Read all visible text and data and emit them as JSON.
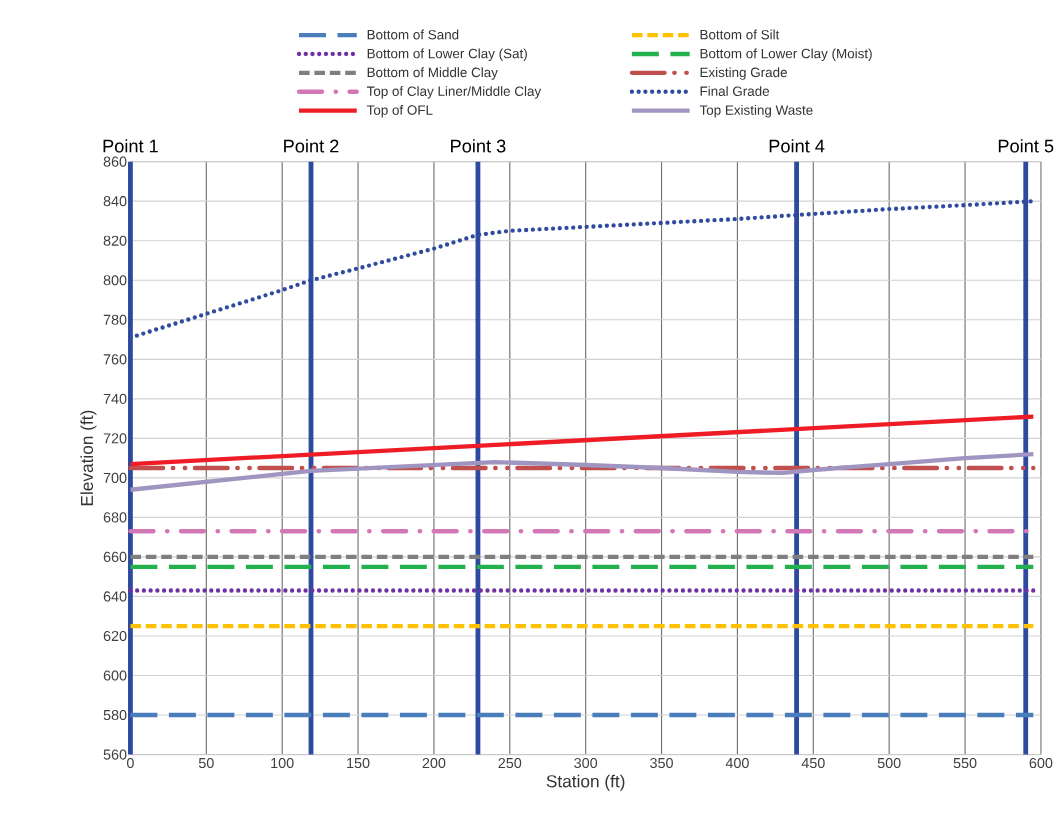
{
  "chart_data": {
    "type": "line",
    "xlabel": "Station (ft)",
    "ylabel": "Elevation (ft)",
    "xlim": [
      0,
      600
    ],
    "ylim": [
      560,
      860
    ],
    "xticks": [
      0,
      50,
      100,
      150,
      200,
      250,
      300,
      350,
      400,
      450,
      500,
      550,
      600
    ],
    "yticks": [
      560,
      580,
      600,
      620,
      640,
      660,
      680,
      700,
      720,
      740,
      760,
      780,
      800,
      820,
      840,
      860
    ],
    "grid": true,
    "legend": "top",
    "marker": "none",
    "series": [
      {
        "name": "Bottom of Sand",
        "color": "#4a7ebb",
        "line_style": "longdash",
        "x": [
          0,
          595
        ],
        "values": [
          580,
          580
        ]
      },
      {
        "name": "Bottom of Silt",
        "color": "#ffc000",
        "line_style": "dashed",
        "x": [
          0,
          595
        ],
        "values": [
          625,
          625
        ]
      },
      {
        "name": "Bottom of Lower Clay (Sat)",
        "color": "#7030a0",
        "line_style": "dotted",
        "x": [
          0,
          595
        ],
        "values": [
          643,
          643
        ]
      },
      {
        "name": "Bottom of Lower Clay (Moist)",
        "color": "#22b14c",
        "line_style": "longdash",
        "x": [
          0,
          595
        ],
        "values": [
          655,
          655
        ]
      },
      {
        "name": "Bottom of Middle Clay",
        "color": "#7f7f7f",
        "line_style": "dashed",
        "x": [
          0,
          595
        ],
        "values": [
          660,
          660
        ]
      },
      {
        "name": "Existing Grade",
        "color": "#c0504d",
        "line_style": "dashdotdot",
        "x": [
          0,
          595
        ],
        "values": [
          705,
          705
        ]
      },
      {
        "name": "Top of Clay Liner/Middle Clay",
        "color": "#d378b7",
        "line_style": "dashdot",
        "x": [
          0,
          595
        ],
        "values": [
          673,
          673
        ]
      },
      {
        "name": "Final Grade",
        "color": "#2f4ba0",
        "line_style": "dotted",
        "x": [
          0,
          50,
          100,
          119,
          150,
          200,
          229,
          250,
          300,
          350,
          400,
          439,
          500,
          550,
          595
        ],
        "values": [
          771,
          783,
          795,
          800,
          806,
          816,
          823,
          825,
          827,
          829,
          831,
          833,
          836,
          838,
          840
        ]
      },
      {
        "name": "Top of OFL",
        "color": "#ee1c25",
        "line_style": "solid",
        "x": [
          0,
          595
        ],
        "values": [
          707,
          731
        ]
      },
      {
        "name": "Top Existing Waste",
        "color": "#a094c0",
        "line_style": "solid",
        "x": [
          0,
          100,
          119,
          240,
          300,
          350,
          400,
          430,
          450,
          500,
          550,
          595
        ],
        "values": [
          694,
          702,
          703.5,
          708,
          706.5,
          705,
          703,
          702.5,
          704,
          707,
          710,
          712
        ]
      }
    ],
    "ref_lines": [
      {
        "axis": "x",
        "value": 0,
        "label": "Point 1",
        "color": "#2e4aa0"
      },
      {
        "axis": "x",
        "value": 119,
        "label": "Point 2",
        "color": "#2e4aa0"
      },
      {
        "axis": "x",
        "value": 229,
        "label": "Point 3",
        "color": "#2e4aa0"
      },
      {
        "axis": "x",
        "value": 439,
        "label": "Point 4",
        "color": "#2e4aa0"
      },
      {
        "axis": "x",
        "value": 590,
        "label": "Point 5",
        "color": "#2e4aa0"
      }
    ]
  }
}
